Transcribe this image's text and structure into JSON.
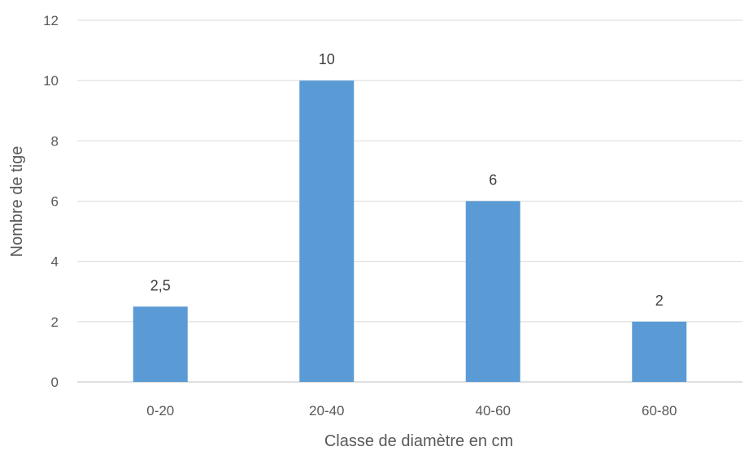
{
  "chart_data": {
    "type": "bar",
    "title": "",
    "xlabel": "Classe de diamètre en cm",
    "ylabel": "Nombre de tige",
    "categories": [
      "0-20",
      "20-40",
      "40-60",
      "60-80"
    ],
    "values": [
      2.5,
      10,
      6,
      2
    ],
    "data_labels": [
      "2,5",
      "10",
      "6",
      "2"
    ],
    "ylim": [
      0,
      12
    ],
    "yticks": [
      0,
      2,
      4,
      6,
      8,
      10,
      12
    ],
    "grid": true,
    "legend": "none",
    "colors": {
      "bar": "#5B9BD5",
      "grid": "#D9D9D9",
      "axis": "#BFBFBF"
    }
  }
}
